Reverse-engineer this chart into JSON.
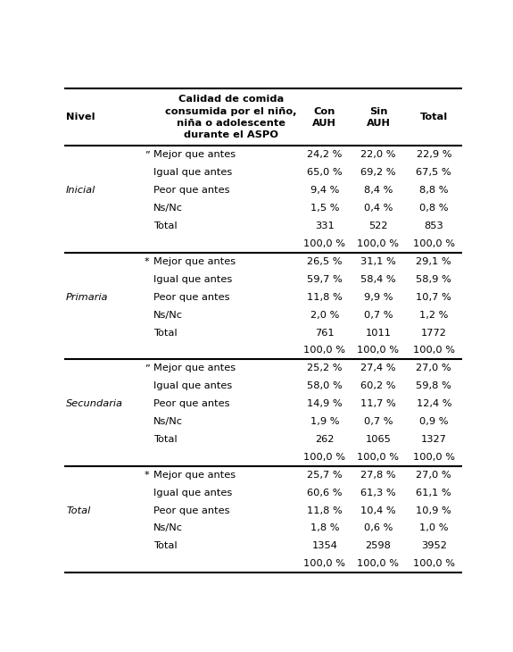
{
  "sections": [
    {
      "nivel": "Inicial",
      "asterisk": "”",
      "rows": [
        [
          "Mejor que antes",
          "24,2 %",
          "22,0 %",
          "22,9 %"
        ],
        [
          "Igual que antes",
          "65,0 %",
          "69,2 %",
          "67,5 %"
        ],
        [
          "Peor que antes",
          "9,4 %",
          "8,4 %",
          "8,8 %"
        ],
        [
          "Ns/Nc",
          "1,5 %",
          "0,4 %",
          "0,8 %"
        ],
        [
          "Total",
          "331",
          "522",
          "853"
        ],
        [
          "",
          "100,0 %",
          "100,0 %",
          "100,0 %"
        ]
      ]
    },
    {
      "nivel": "Primaria",
      "asterisk": "*",
      "rows": [
        [
          "Mejor que antes",
          "26,5 %",
          "31,1 %",
          "29,1 %"
        ],
        [
          "Igual que antes",
          "59,7 %",
          "58,4 %",
          "58,9 %"
        ],
        [
          "Peor que antes",
          "11,8 %",
          "9,9 %",
          "10,7 %"
        ],
        [
          "Ns/Nc",
          "2,0 %",
          "0,7 %",
          "1,2 %"
        ],
        [
          "Total",
          "761",
          "1011",
          "1772"
        ],
        [
          "",
          "100,0 %",
          "100,0 %",
          "100,0 %"
        ]
      ]
    },
    {
      "nivel": "Secundaria",
      "asterisk": "”",
      "rows": [
        [
          "Mejor que antes",
          "25,2 %",
          "27,4 %",
          "27,0 %"
        ],
        [
          "Igual que antes",
          "58,0 %",
          "60,2 %",
          "59,8 %"
        ],
        [
          "Peor que antes",
          "14,9 %",
          "11,7 %",
          "12,4 %"
        ],
        [
          "Ns/Nc",
          "1,9 %",
          "0,7 %",
          "0,9 %"
        ],
        [
          "Total",
          "262",
          "1065",
          "1327"
        ],
        [
          "",
          "100,0 %",
          "100,0 %",
          "100,0 %"
        ]
      ]
    },
    {
      "nivel": "Total",
      "asterisk": "*",
      "rows": [
        [
          "Mejor que antes",
          "25,7 %",
          "27,8 %",
          "27,0 %"
        ],
        [
          "Igual que antes",
          "60,6 %",
          "61,3 %",
          "61,1 %"
        ],
        [
          "Peor que antes",
          "11,8 %",
          "10,4 %",
          "10,9 %"
        ],
        [
          "Ns/Nc",
          "1,8 %",
          "0,6 %",
          "1,0 %"
        ],
        [
          "Total",
          "1354",
          "2598",
          "3952"
        ],
        [
          "",
          "100,0 %",
          "100,0 %",
          "100,0 %"
        ]
      ]
    }
  ],
  "header_quality": "Calidad de comida\nconsumida por el niño,\nniña o adolescente\ndurante el ASPO",
  "header_con": "Con\nAUH",
  "header_sin": "Sin\nAUH",
  "header_total": "Total",
  "header_nivel": "Nivel",
  "bg_color": "#ffffff",
  "text_color": "#000000",
  "line_color": "#000000"
}
